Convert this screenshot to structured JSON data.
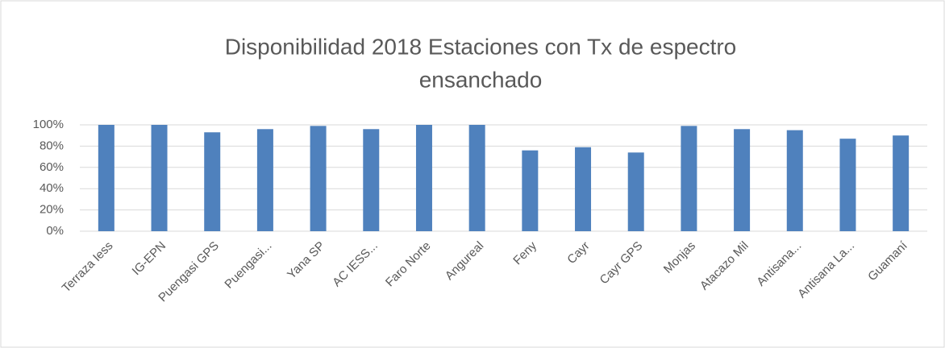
{
  "chart_data": {
    "type": "bar",
    "title": "Disponibilidad 2018 Estaciones con Tx de espectro",
    "subtitle": "ensanchado",
    "categories": [
      "Terraza Iess",
      "IG-EPN",
      "Puengasi  GPS",
      "Puengasi...",
      "Yana SP",
      "AC IESS...",
      "Faro Norte",
      "Angureal",
      "Feny",
      "Cayr",
      "Cayr GPS",
      "Monjas",
      "Atacazo Mil",
      "Antisana...",
      "Antisana La...",
      "Guamaní"
    ],
    "values": [
      100,
      100,
      93,
      96,
      99,
      96,
      100,
      100,
      76,
      79,
      74,
      99,
      96,
      95,
      87,
      90
    ],
    "color": "#4f81bd",
    "ylim": [
      0,
      100
    ],
    "yticks": [
      {
        "value": 0,
        "label": "0%"
      },
      {
        "value": 20,
        "label": "20%"
      },
      {
        "value": 40,
        "label": "40%"
      },
      {
        "value": 60,
        "label": "60%"
      },
      {
        "value": 80,
        "label": "80%"
      },
      {
        "value": 100,
        "label": "100%"
      }
    ],
    "grid": true
  }
}
